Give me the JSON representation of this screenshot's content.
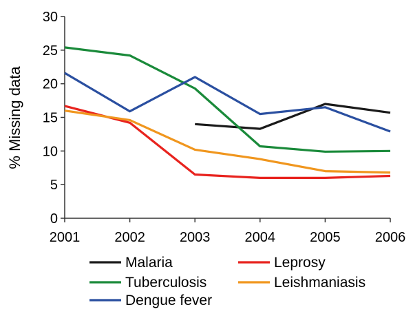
{
  "chart_data": {
    "type": "line",
    "title": "",
    "xlabel": "",
    "ylabel": "% Missing data",
    "x": [
      "2001",
      "2002",
      "2003",
      "2004",
      "2005",
      "2006"
    ],
    "ylim": [
      0,
      30
    ],
    "yticks": [
      "0",
      "5",
      "10",
      "15",
      "20",
      "25",
      "30"
    ],
    "grid": false,
    "legend_position": "bottom",
    "series": [
      {
        "name": "Malaria",
        "color": "#1a1a1a",
        "values": [
          null,
          null,
          14.0,
          13.3,
          17.0,
          15.7
        ]
      },
      {
        "name": "Leprosy",
        "color": "#e8231e",
        "values": [
          16.7,
          14.2,
          6.5,
          6.0,
          6.0,
          6.3
        ]
      },
      {
        "name": "Tuberculosis",
        "color": "#1a8a3a",
        "values": [
          25.4,
          24.2,
          19.3,
          10.7,
          9.9,
          10.0
        ]
      },
      {
        "name": "Leishmaniasis",
        "color": "#f0961e",
        "values": [
          16.0,
          14.6,
          10.2,
          8.8,
          7.0,
          6.8
        ]
      },
      {
        "name": "Dengue fever",
        "color": "#2a4fa0",
        "values": [
          21.6,
          15.9,
          21.0,
          15.5,
          16.5,
          12.9
        ]
      }
    ]
  }
}
